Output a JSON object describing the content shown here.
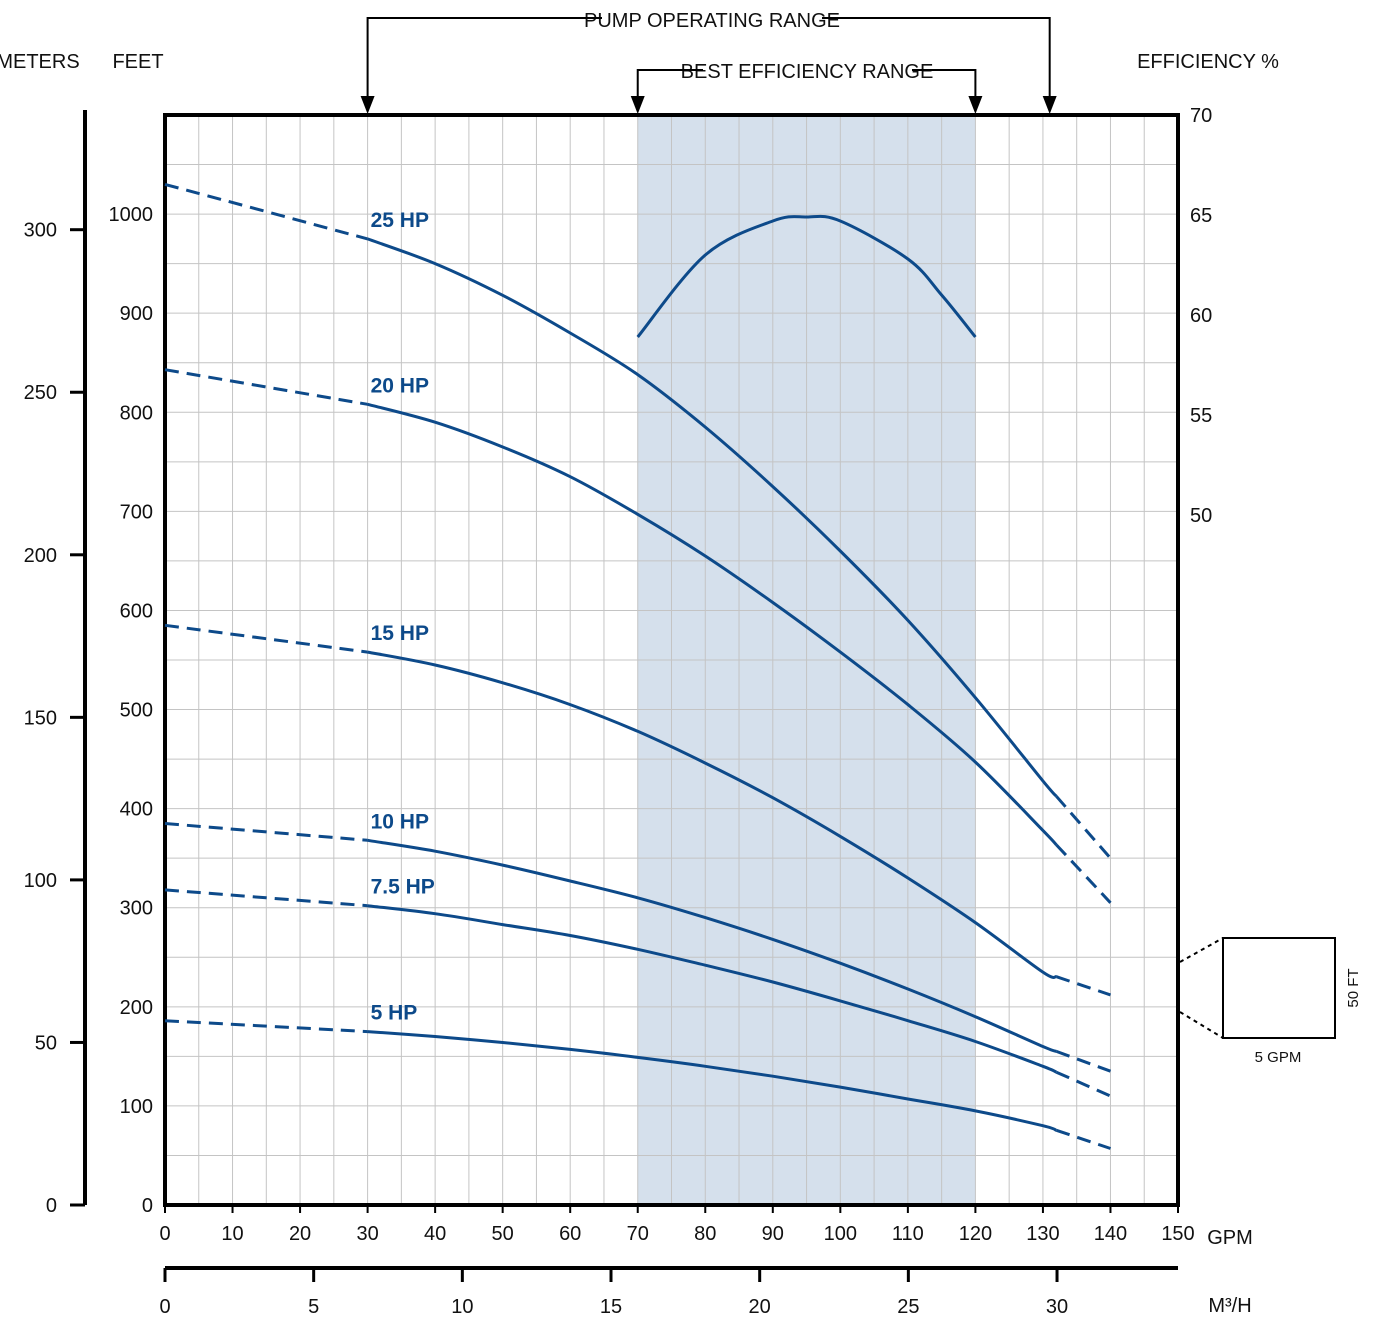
{
  "chart_data": {
    "type": "line",
    "colors": {
      "curve": "#0d4a8a",
      "band": "#d5e0ec",
      "grid": "#c4c4c4",
      "axis": "#000000"
    },
    "x_axis": {
      "label": "GPM",
      "range": [
        0,
        150
      ],
      "ticks": [
        0,
        10,
        20,
        30,
        40,
        50,
        60,
        70,
        80,
        90,
        100,
        110,
        120,
        130,
        140,
        150
      ]
    },
    "x2_axis": {
      "label": "M³/H",
      "ticks": [
        0,
        5,
        10,
        15,
        20,
        25,
        30
      ]
    },
    "y_axis": {
      "label": "FEET",
      "range": [
        0,
        1100
      ],
      "ticks": [
        0,
        100,
        200,
        300,
        400,
        500,
        600,
        700,
        800,
        900,
        1000
      ]
    },
    "y_meters_axis": {
      "label": "METERS",
      "range": [
        0,
        335.28
      ],
      "ticks": [
        0,
        50,
        100,
        150,
        200,
        250,
        300
      ]
    },
    "y_eff_axis": {
      "label": "EFFICIENCY %",
      "ticks": [
        50,
        55,
        60,
        65,
        70
      ]
    },
    "annotations": {
      "operating_range": {
        "label": "PUMP OPERATING RANGE",
        "from": 30,
        "to": 131
      },
      "best_efficiency_range": {
        "label": "BEST EFFICIENCY RANGE",
        "from": 70,
        "to": 120
      }
    },
    "series": [
      {
        "name": "25 HP",
        "solid_range": [
          30,
          132
        ],
        "x": [
          0,
          30,
          40,
          50,
          60,
          70,
          80,
          90,
          100,
          110,
          120,
          130,
          140
        ],
        "y": [
          1030,
          975,
          950,
          918,
          880,
          838,
          785,
          725,
          660,
          590,
          512,
          428,
          350
        ]
      },
      {
        "name": "20 HP",
        "solid_range": [
          30,
          132
        ],
        "x": [
          0,
          30,
          40,
          50,
          60,
          70,
          80,
          90,
          100,
          110,
          120,
          130,
          140
        ],
        "y": [
          843,
          808,
          790,
          765,
          735,
          697,
          655,
          608,
          558,
          505,
          447,
          378,
          305
        ]
      },
      {
        "name": "15 HP",
        "solid_range": [
          30,
          132
        ],
        "x": [
          0,
          30,
          40,
          50,
          60,
          70,
          80,
          90,
          100,
          110,
          120,
          130,
          140
        ],
        "y": [
          585,
          558,
          545,
          527,
          505,
          478,
          446,
          411,
          372,
          330,
          285,
          235,
          212
        ]
      },
      {
        "name": "10 HP",
        "solid_range": [
          30,
          132
        ],
        "x": [
          0,
          30,
          40,
          50,
          60,
          70,
          80,
          90,
          100,
          110,
          120,
          130,
          140
        ],
        "y": [
          385,
          368,
          357,
          343,
          327,
          310,
          290,
          268,
          244,
          218,
          190,
          160,
          135
        ]
      },
      {
        "name": "7.5 HP",
        "solid_range": [
          30,
          132
        ],
        "x": [
          0,
          30,
          40,
          50,
          60,
          70,
          80,
          90,
          100,
          110,
          120,
          130,
          140
        ],
        "y": [
          318,
          302,
          294,
          283,
          272,
          258,
          242,
          225,
          206,
          186,
          165,
          140,
          110
        ]
      },
      {
        "name": "5 HP",
        "solid_range": [
          30,
          132
        ],
        "x": [
          0,
          30,
          40,
          50,
          60,
          70,
          80,
          90,
          100,
          110,
          120,
          130,
          140
        ],
        "y": [
          186,
          175,
          170,
          164,
          157,
          149,
          140,
          130,
          119,
          107,
          95,
          80,
          57
        ]
      },
      {
        "name": "Efficiency",
        "axis": "efficiency",
        "x": [
          70,
          80,
          90,
          95,
          100,
          110,
          115,
          120
        ],
        "y": [
          58.9,
          63.0,
          64.7,
          64.9,
          64.7,
          62.8,
          61.0,
          58.9
        ]
      }
    ],
    "scale_box": {
      "width_label": "5 GPM",
      "height_label": "50 FT"
    }
  }
}
